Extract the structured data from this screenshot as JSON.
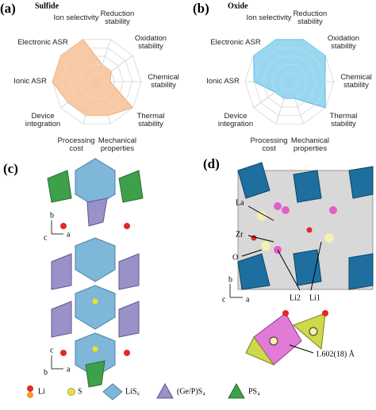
{
  "chart_data": [
    {
      "type": "radar",
      "label": "(a)",
      "title": "Sulfide",
      "categories": [
        "Ion selectivity",
        "Reduction stability",
        "Oxidation stability",
        "Chemical stability",
        "Thermal stability",
        "Mechanical properties",
        "Processing cost",
        "Device integration",
        "Ionic ASR",
        "Electronic ASR"
      ],
      "values": [
        5,
        2,
        2,
        1.5,
        5,
        4,
        4,
        4,
        5,
        5
      ],
      "color": "#f6c49b",
      "stroke": "#e8a978",
      "rlim": [
        0,
        5
      ],
      "grid": true
    },
    {
      "type": "radar",
      "label": "(b)",
      "title": "Oxide",
      "categories": [
        "Ion selectivity",
        "Reduction stability",
        "Oxidation stability",
        "Chemical stability",
        "Thermal stability",
        "Mechanical properties",
        "Processing cost",
        "Device integration",
        "Ionic ASR",
        "Electronic ASR"
      ],
      "values": [
        5,
        5,
        5,
        4,
        5,
        2,
        2,
        2,
        4,
        5
      ],
      "color": "#8ed3f0",
      "stroke": "#5fb8df",
      "rlim": [
        0,
        5
      ],
      "grid": true
    }
  ],
  "panel_c": {
    "label": "(c)",
    "axes_top": [
      "b",
      "c",
      "a"
    ],
    "axes_bottom": [
      "c",
      "b",
      "a"
    ]
  },
  "panel_d": {
    "label": "(d)",
    "atoms": [
      "La",
      "Zr",
      "O",
      "Li2",
      "Li1"
    ],
    "axes": [
      "b",
      "c",
      "a"
    ],
    "bond": "1.602(18) Å"
  },
  "legend": [
    "Li",
    "S",
    "LiS₆",
    "(Ge/P)S₄",
    "PS₄"
  ]
}
